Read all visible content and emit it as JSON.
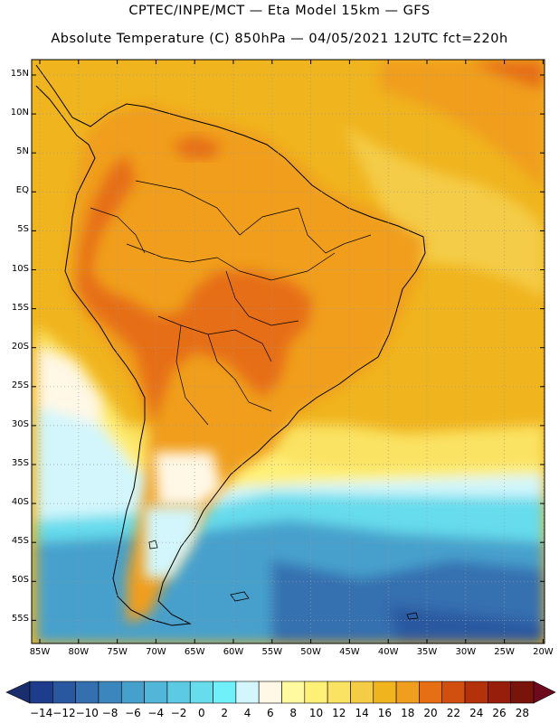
{
  "header": {
    "line1": "CPTEC/INPE/MCT —  Eta Model 15km — GFS",
    "line2": "Absolute Temperature (C) 850hPa — 04/05/2021 12UTC fct=220h"
  },
  "map": {
    "lat_labels": [
      "15N",
      "10N",
      "5N",
      "EQ",
      "5S",
      "10S",
      "15S",
      "20S",
      "25S",
      "30S",
      "35S",
      "40S",
      "45S",
      "50S",
      "55S"
    ],
    "lon_labels": [
      "85W",
      "80W",
      "75W",
      "70W",
      "65W",
      "60W",
      "55W",
      "50W",
      "45W",
      "40W",
      "35W",
      "30W",
      "25W",
      "20W"
    ],
    "grid": "dotted"
  },
  "colorbar": {
    "labels": [
      "-14",
      "-12",
      "-10",
      "-8",
      "-6",
      "-4",
      "-2",
      "0",
      "2",
      "4",
      "6",
      "8",
      "10",
      "12",
      "14",
      "16",
      "18",
      "20",
      "22",
      "24",
      "26",
      "28"
    ],
    "colors": [
      "#1e3c8c",
      "#2a58a0",
      "#3470b0",
      "#3c86be",
      "#46a0cc",
      "#52b6d8",
      "#5ccae2",
      "#66dcec",
      "#70f0f8",
      "#d2f6fc",
      "#fff8e6",
      "#fffaa0",
      "#fff078",
      "#fae262",
      "#f4cc46",
      "#f0b41e",
      "#f09e1e",
      "#e66e14",
      "#d2500f",
      "#b4320a",
      "#961e0a",
      "#78140a"
    ],
    "left_arrow_color": "#1a2e6e",
    "right_arrow_color": "#6e0a1e"
  },
  "colors": {
    "ocean_warm": "#f0b41e",
    "land_warm": "#f09e1e",
    "land_hot": "#e66e14",
    "mild": "#fff8e6",
    "cool": "#d2f6fc",
    "cold": "#66dcec",
    "colder": "#46a0cc",
    "coldest": "#2a58a0"
  }
}
